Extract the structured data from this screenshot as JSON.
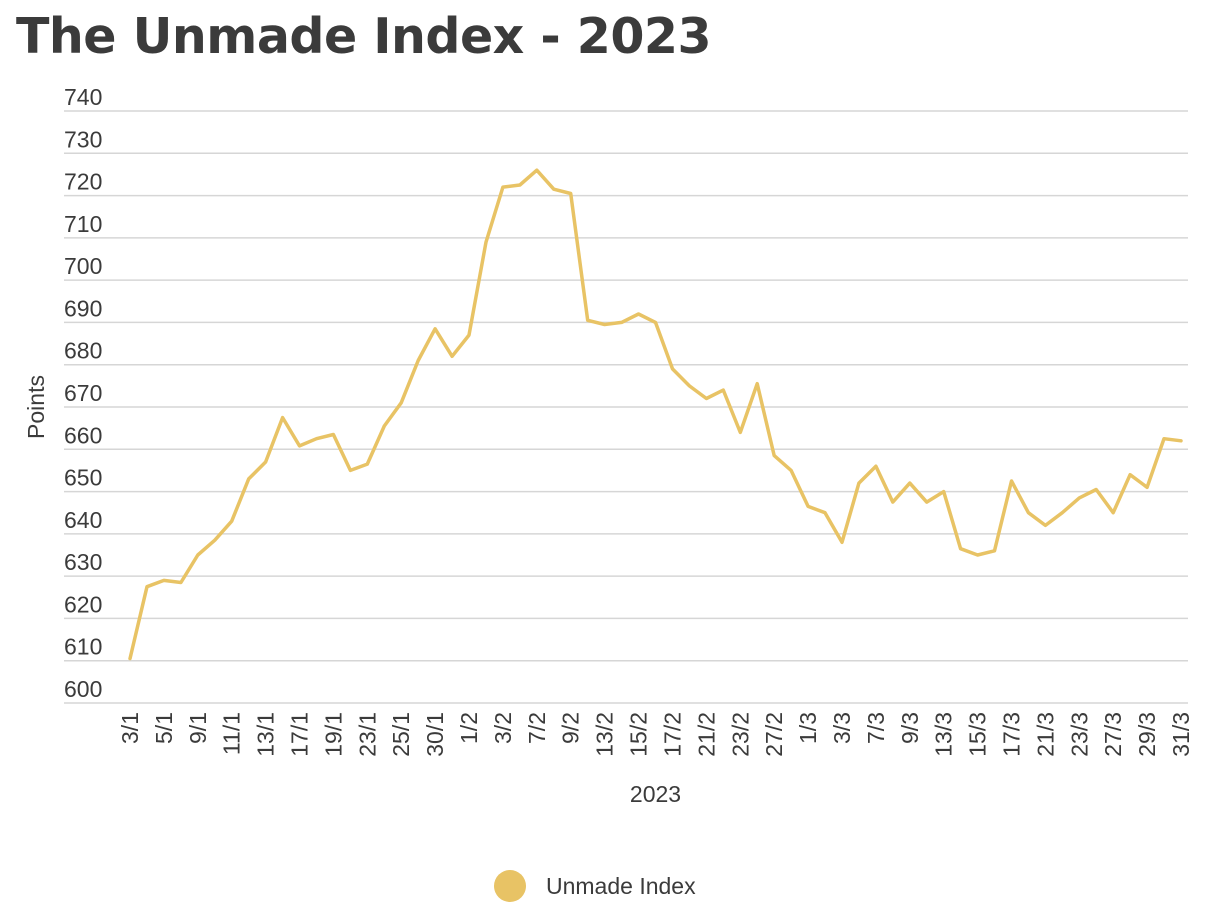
{
  "chart_data": {
    "type": "line",
    "title": "The Unmade Index - 2023",
    "xlabel": "2023",
    "ylabel": "Points",
    "ylim": [
      600,
      740
    ],
    "y_ticks": [
      600,
      610,
      620,
      630,
      640,
      650,
      660,
      670,
      680,
      690,
      700,
      710,
      720,
      730,
      740
    ],
    "grid": "horizontal",
    "legend_position": "bottom-center",
    "x_tick_labels": [
      "3/1",
      "5/1",
      "9/1",
      "11/1",
      "13/1",
      "17/1",
      "19/1",
      "23/1",
      "25/1",
      "30/1",
      "1/2",
      "3/2",
      "7/2",
      "9/2",
      "13/2",
      "15/2",
      "17/2",
      "21/2",
      "23/2",
      "27/2",
      "1/3",
      "3/3",
      "7/3",
      "9/3",
      "13/3",
      "15/3",
      "17/3",
      "21/3",
      "23/3",
      "27/3",
      "29/3",
      "31/3"
    ],
    "series": [
      {
        "name": "Unmade Index",
        "color": "#e8c365",
        "values": [
          610.5,
          627.5,
          629,
          628.5,
          635,
          638.5,
          643,
          653,
          657,
          667.5,
          660.8,
          662.5,
          663.5,
          655,
          656.5,
          665.5,
          671,
          681,
          688.5,
          682,
          687,
          709,
          722,
          722.5,
          726,
          721.5,
          720.5,
          690.5,
          689.5,
          690,
          692,
          690,
          679,
          675,
          672,
          674,
          664,
          675.5,
          658.5,
          655,
          646.5,
          645,
          638,
          652,
          656,
          647.5,
          652,
          647.5,
          650,
          636.5,
          635,
          636,
          652.5,
          645,
          642,
          645,
          648.5,
          650.5,
          645,
          654,
          651,
          662.5,
          662
        ]
      }
    ]
  }
}
